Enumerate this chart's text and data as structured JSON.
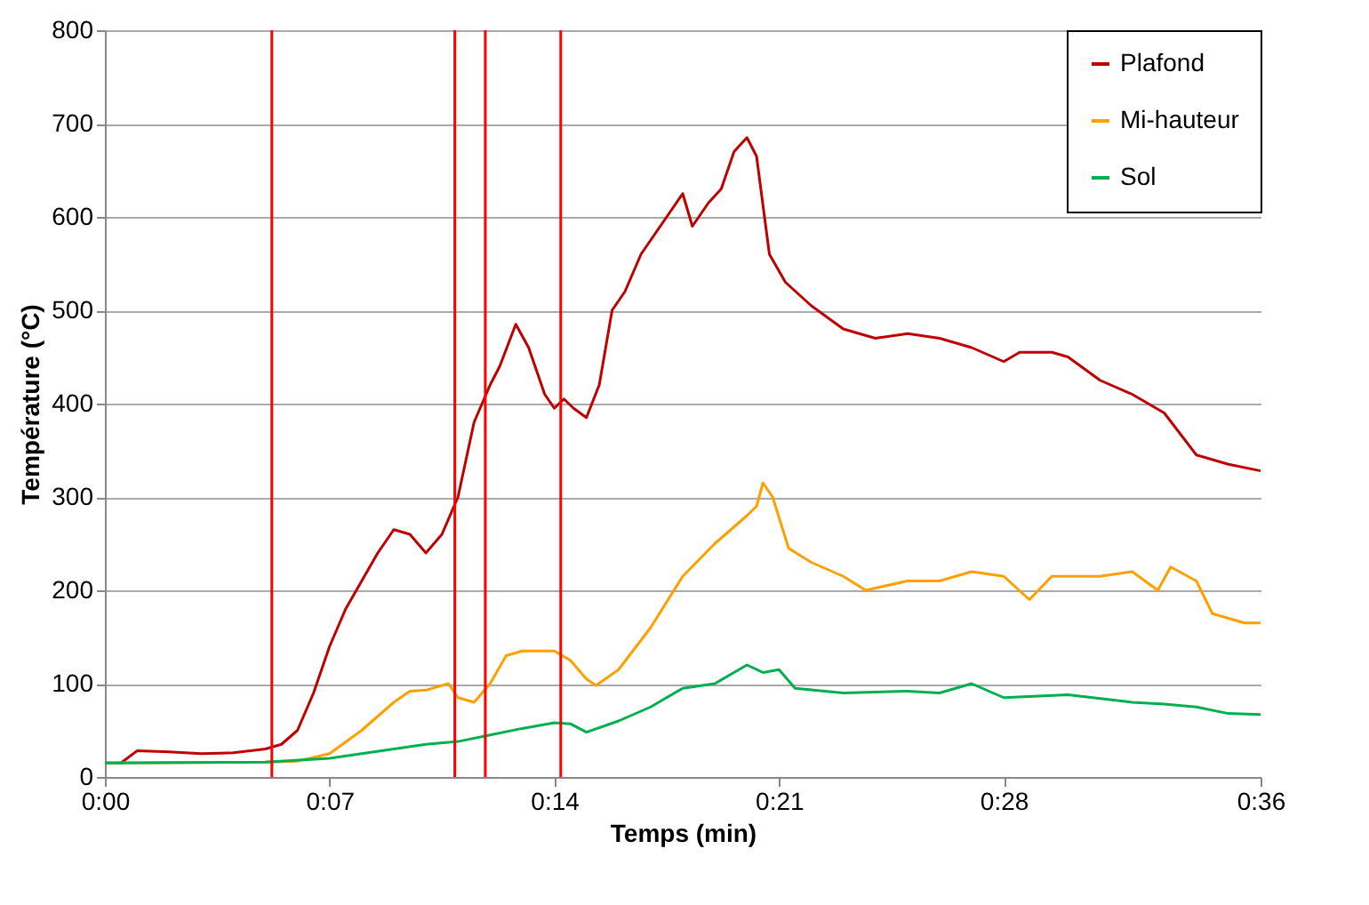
{
  "chart_data": {
    "type": "line",
    "xlabel": "Temps (min)",
    "ylabel": "Température (°C)",
    "xlim": [
      0,
      36
    ],
    "xticks": [
      {
        "value": 0,
        "label": "0:00"
      },
      {
        "value": 7,
        "label": "0:07"
      },
      {
        "value": 14,
        "label": "0:14"
      },
      {
        "value": 21,
        "label": "0:21"
      },
      {
        "value": 28,
        "label": "0:28"
      },
      {
        "value": 36,
        "label": "0:36"
      }
    ],
    "ylim": [
      0,
      800
    ],
    "yticks": [
      0,
      100,
      200,
      300,
      400,
      500,
      600,
      700,
      800
    ],
    "grid": "y",
    "legend": "top right",
    "marker": "none",
    "line_style": "solid",
    "series": [
      {
        "name": "Plafond",
        "color": "#c00000",
        "x": [
          0,
          0.5,
          1,
          2,
          3,
          4,
          5,
          5.5,
          6,
          6.5,
          7,
          7.5,
          8,
          8.5,
          9,
          9.5,
          10,
          10.5,
          11,
          11.5,
          12,
          12.3,
          12.8,
          13.2,
          13.7,
          14,
          14.3,
          14.6,
          15,
          15.4,
          15.8,
          16.2,
          16.7,
          17,
          17.5,
          18,
          18.3,
          18.8,
          19.2,
          19.6,
          20,
          20.3,
          20.7,
          21.2,
          22,
          23,
          24,
          25,
          26,
          27,
          28,
          28.5,
          29.5,
          30,
          31,
          32,
          33,
          34,
          35,
          36
        ],
        "values": [
          15,
          15,
          28,
          27,
          25,
          26,
          30,
          35,
          50,
          90,
          140,
          180,
          210,
          240,
          265,
          260,
          240,
          260,
          300,
          380,
          420,
          440,
          485,
          460,
          410,
          395,
          405,
          395,
          385,
          420,
          500,
          520,
          560,
          575,
          600,
          625,
          590,
          615,
          630,
          670,
          685,
          665,
          560,
          530,
          505,
          480,
          470,
          475,
          470,
          460,
          445,
          455,
          455,
          450,
          425,
          410,
          390,
          345,
          335,
          328
        ]
      },
      {
        "name": "Mi-hauteur",
        "color": "#ffa000",
        "x": [
          0,
          5,
          6,
          7,
          8,
          9,
          9.5,
          10,
          10.7,
          11,
          11.5,
          12,
          12.5,
          13,
          14,
          14.5,
          15,
          15.3,
          16,
          17,
          18,
          19,
          20,
          20.3,
          20.5,
          20.8,
          21.3,
          22,
          23,
          23.7,
          25,
          26,
          27,
          28,
          28.8,
          29.5,
          31,
          32,
          32.8,
          33.2,
          34,
          34.5,
          35.5,
          36
        ],
        "values": [
          15,
          16,
          17,
          25,
          50,
          80,
          92,
          93,
          100,
          85,
          80,
          100,
          130,
          135,
          135,
          125,
          105,
          98,
          115,
          160,
          215,
          250,
          280,
          290,
          315,
          300,
          245,
          230,
          215,
          200,
          210,
          210,
          220,
          215,
          190,
          215,
          215,
          220,
          200,
          225,
          210,
          175,
          165,
          165
        ]
      },
      {
        "name": "Sol",
        "color": "#00b050",
        "x": [
          0,
          5,
          7,
          9,
          10,
          11,
          12,
          13,
          14,
          14.5,
          15,
          16,
          17,
          18,
          19,
          20,
          20.5,
          21,
          21.5,
          23,
          25,
          26,
          27,
          28,
          30,
          32,
          33,
          34,
          35,
          36
        ],
        "values": [
          15,
          16,
          20,
          30,
          35,
          38,
          45,
          52,
          58,
          57,
          48,
          60,
          75,
          95,
          100,
          120,
          112,
          115,
          95,
          90,
          92,
          90,
          100,
          85,
          88,
          80,
          78,
          75,
          68,
          67
        ]
      }
    ],
    "ref_lines": [
      {
        "axis": "x",
        "value": 5.2,
        "color": "#ff0000"
      },
      {
        "axis": "x",
        "value": 10.9,
        "color": "#ff0000"
      },
      {
        "axis": "x",
        "value": 11.85,
        "color": "#ff0000"
      },
      {
        "axis": "x",
        "value": 14.2,
        "color": "#ff0000"
      }
    ]
  }
}
